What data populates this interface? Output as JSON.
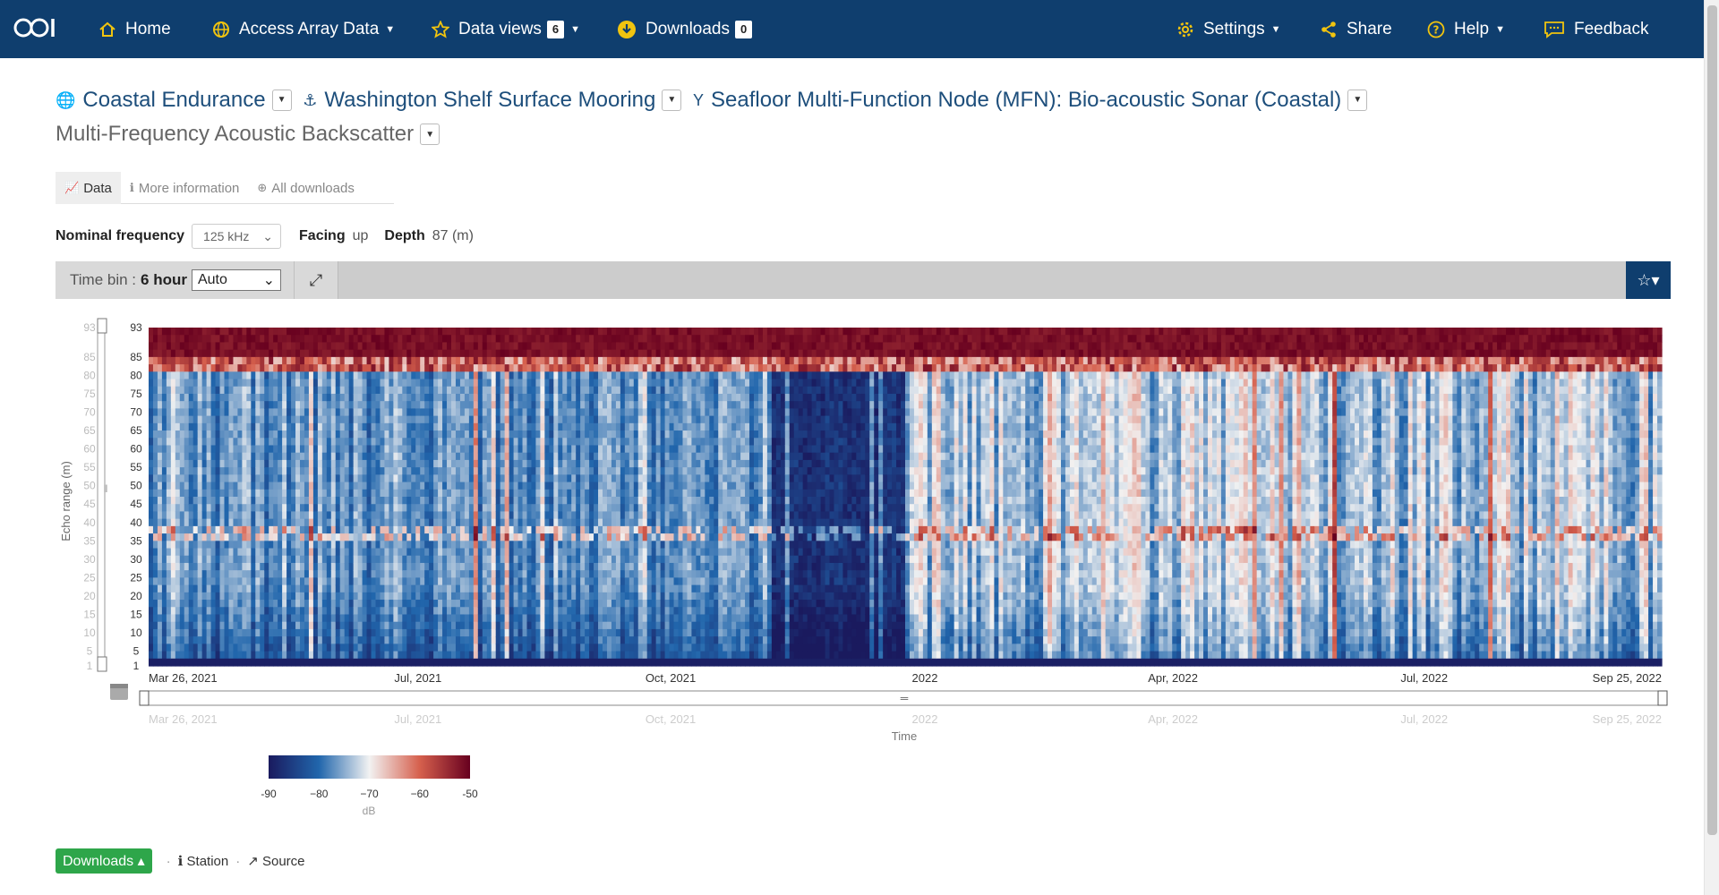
{
  "nav": {
    "home": "Home",
    "access": "Access Array Data",
    "data_views": "Data views",
    "data_views_count": "6",
    "downloads": "Downloads",
    "downloads_count": "0",
    "settings": "Settings",
    "share": "Share",
    "help": "Help",
    "feedback": "Feedback"
  },
  "breadcrumb": {
    "array": "Coastal Endurance",
    "site": "Washington Shelf Surface Mooring",
    "node": "Seafloor Multi-Function Node (MFN): Bio-acoustic Sonar (Coastal)",
    "instrument": "Multi-Frequency Acoustic Backscatter"
  },
  "tabs": {
    "data": "Data",
    "more_info": "More information",
    "all_downloads": "All downloads"
  },
  "params": {
    "freq_label": "Nominal frequency",
    "freq_value": "125 kHz",
    "facing_label": "Facing",
    "facing_value": "up",
    "depth_label": "Depth",
    "depth_value": "87 (m)"
  },
  "toolbar": {
    "time_bin_label": "Time bin :",
    "time_bin_value": "6 hour",
    "bin_select": "Auto"
  },
  "chart_data": {
    "type": "heatmap",
    "ylabel": "Echo range (m)",
    "xlabel": "Time",
    "y_ticks": [
      "93",
      "85",
      "80",
      "75",
      "70",
      "65",
      "60",
      "55",
      "50",
      "45",
      "40",
      "35",
      "30",
      "25",
      "20",
      "15",
      "10",
      "5",
      "1"
    ],
    "x_ticks": [
      "Mar 26, 2021",
      "Jul, 2021",
      "Oct, 2021",
      "2022",
      "Apr, 2022",
      "Jul, 2022",
      "Sep 25, 2022"
    ],
    "colorbar": {
      "ticks": [
        "-90",
        "−80",
        "−70",
        "−60",
        "-50"
      ],
      "unit": "dB",
      "min": -90,
      "max": -50
    },
    "colors": {
      "low": "#1a1a5e",
      "mid": "#f2f2f2",
      "high": "#67001f"
    }
  },
  "footer": {
    "downloads": "Downloads",
    "station": "Station",
    "source": "Source"
  }
}
